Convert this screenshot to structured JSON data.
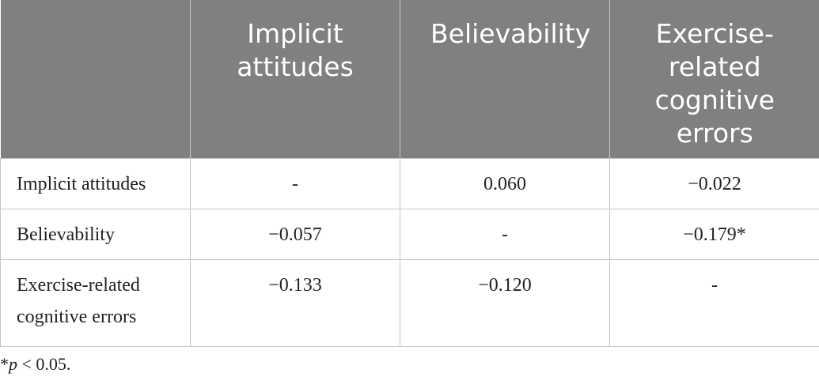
{
  "table": {
    "header": [
      "",
      "Implicit attitudes",
      "Believability",
      "Exercise-related cognitive errors"
    ],
    "rows": [
      [
        "Implicit attitudes",
        "-",
        "0.060",
        "−0.022"
      ],
      [
        "Believability",
        "−0.057",
        "-",
        "−0.179*"
      ],
      [
        "Exercise-related cognitive errors",
        "−0.133",
        "−0.120",
        "-"
      ]
    ]
  },
  "footnote": {
    "star": "*",
    "p": "p",
    "rest": " < 0.05."
  }
}
